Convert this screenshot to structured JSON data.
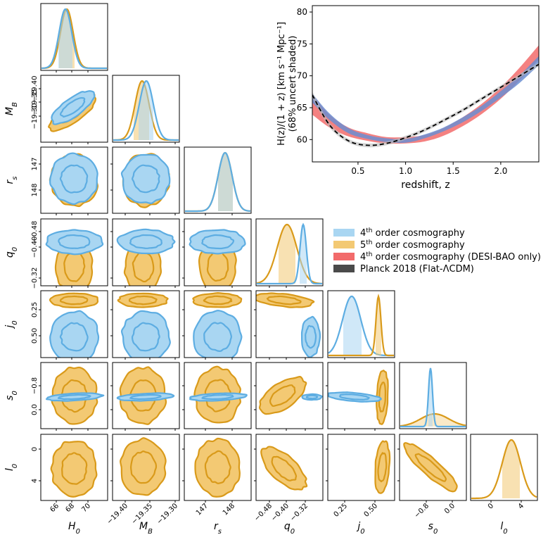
{
  "chart_data": {
    "type": "corner-plot",
    "parameters": [
      {
        "id": "H0",
        "label": "H",
        "sub": "0",
        "ticks": [
          "66",
          "68",
          "70"
        ]
      },
      {
        "id": "MB",
        "label": "M",
        "sub": "B",
        "ticks": [
          "−19.40",
          "−19.35",
          "−19.30"
        ]
      },
      {
        "id": "rs",
        "label": "r",
        "sub": "s",
        "ticks": [
          "147",
          "148"
        ]
      },
      {
        "id": "q0",
        "label": "q",
        "sub": "0",
        "ticks": [
          "−0.48",
          "−0.40",
          "−0.32"
        ]
      },
      {
        "id": "j0",
        "label": "j",
        "sub": "0",
        "ticks": [
          "0.25",
          "0.50"
        ]
      },
      {
        "id": "s0",
        "label": "s",
        "sub": "0",
        "ticks": [
          "−0.8",
          "0.0"
        ]
      },
      {
        "id": "l0",
        "label": "l",
        "sub": "0",
        "ticks": [
          "0",
          "4"
        ]
      }
    ],
    "series": [
      {
        "name": "4th order cosmography",
        "color": "#5dade2",
        "fill": "#a9d6f2",
        "means": {
          "H0": 67.1,
          "MB": -19.38,
          "rs": 147.4,
          "q0": -0.33,
          "j0": 0.28,
          "s0": -0.47
        },
        "sigmas": {
          "H0": 0.6,
          "MB": 0.022,
          "rs": 0.3,
          "q0": 0.012,
          "j0": 0.1,
          "s0": 0.06
        }
      },
      {
        "name": "5th order cosmography",
        "color": "#d99a1a",
        "fill": "#f3c973",
        "means": {
          "H0": 67.3,
          "MB": -19.385,
          "rs": 147.4,
          "q0": -0.395,
          "j0": 0.53,
          "s0": -0.4,
          "l0": 2.6
        },
        "sigmas": {
          "H0": 0.6,
          "MB": 0.022,
          "rs": 0.3,
          "q0": 0.035,
          "j0": 0.03,
          "s0": 0.4,
          "l0": 1.3
        }
      }
    ],
    "hz_panel": {
      "ylabel_line1": "H(z)/(1 + z) [km s⁻¹ Mpc⁻¹]",
      "ylabel_line2": "(68% uncert shaded)",
      "xlabel": "redshift, z",
      "xlim": [
        0.02,
        2.4
      ],
      "ylim": [
        56.5,
        81
      ],
      "xticks": [
        "0.5",
        "1.0",
        "1.5",
        "2.0"
      ],
      "yticks": [
        "60",
        "65",
        "70",
        "75",
        "80"
      ],
      "z": [
        0.02,
        0.2,
        0.4,
        0.6,
        0.8,
        1.0,
        1.2,
        1.4,
        1.6,
        1.8,
        2.0,
        2.2,
        2.4
      ],
      "curves": [
        {
          "name": "4th order cosmography (DESI-BAO only)",
          "color": "#f26b6b",
          "mid": [
            65.5,
            62.9,
            61.2,
            60.4,
            59.9,
            59.9,
            60.2,
            61.2,
            62.8,
            64.8,
            67.3,
            70.3,
            73.7
          ],
          "hw": [
            1.6,
            1.0,
            0.7,
            0.6,
            0.5,
            0.5,
            0.5,
            0.6,
            0.7,
            0.8,
            0.9,
            1.0,
            1.1
          ]
        },
        {
          "name": "4th order cosmography",
          "color": "#6b8ed1",
          "mid": [
            66.5,
            63.6,
            61.4,
            60.4,
            59.9,
            59.8,
            60.5,
            61.6,
            63.1,
            64.9,
            67.1,
            69.5,
            72.4
          ],
          "hw": [
            0.7,
            0.5,
            0.4,
            0.3,
            0.3,
            0.3,
            0.3,
            0.3,
            0.4,
            0.4,
            0.5,
            0.6,
            0.7
          ]
        },
        {
          "name": "Planck 2018 (Flat-ΛCDM)",
          "color": "#000000",
          "dashed": true,
          "mid": [
            67.0,
            62.3,
            59.8,
            59.1,
            59.4,
            60.3,
            61.5,
            63.0,
            64.6,
            66.4,
            68.2,
            70.0,
            71.8
          ],
          "hw": [
            0.5,
            0.4,
            0.3,
            0.3,
            0.3,
            0.3,
            0.3,
            0.3,
            0.3,
            0.3,
            0.3,
            0.3,
            0.3
          ]
        }
      ]
    },
    "legend": [
      {
        "pre": "4",
        "sup": "th",
        "post": " order cosmography",
        "color": "#a9d6f2"
      },
      {
        "pre": "5",
        "sup": "th",
        "post": " order cosmography",
        "color": "#f3c973"
      },
      {
        "pre": "4",
        "sup": "th",
        "post": " order cosmography (DESI-BAO only)",
        "color": "#f26b6b"
      },
      {
        "pre": "Planck 2018 (Flat-ΛCDM)",
        "sup": "",
        "post": "",
        "color": "#4a4a4a"
      }
    ]
  }
}
